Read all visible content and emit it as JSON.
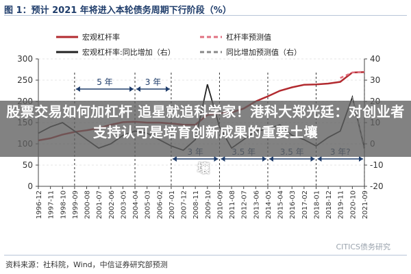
{
  "figure": {
    "title": "图 1：预计 2021 年将进入本轮债务周期下行阶段（%）",
    "source": "资料来源：社科院，Wind，中信证券研究部预测",
    "watermark": "CITICS债务研究"
  },
  "overlay": {
    "headline": "股票交易如何加杠杆 追星就追科学家！港科大郑光廷：对创业者支持认可是培育创新成果的重要土壤",
    "tail": "壤"
  },
  "colors": {
    "leverage": "#b22a2f",
    "leverage_forecast": "#e07080",
    "yoy": "#222222",
    "yoy_forecast": "#888888",
    "annotation": "#1f3d6b"
  },
  "chart_data": {
    "type": "line",
    "x": [
      "1996-12",
      "1997-11",
      "1998-10",
      "1999-09",
      "2000-08",
      "2001-07",
      "2002-06",
      "2003-05",
      "2004-04",
      "2005-03",
      "2006-02",
      "2007-01",
      "2007-12",
      "2008-11",
      "2009-10",
      "2010-09",
      "2011-08",
      "2012-07",
      "2013-06",
      "2014-05",
      "2015-04",
      "2016-03",
      "2017-02",
      "2018-01",
      "2018-12",
      "2019-11",
      "2020-10",
      "2021-09"
    ],
    "ylim_left": [
      0,
      300
    ],
    "ylim_right": [
      -20,
      40
    ],
    "yticks_left": [
      0,
      50,
      100,
      150,
      200,
      250,
      300
    ],
    "yticks_right": [
      -20,
      -10,
      0,
      10,
      20,
      30,
      40
    ],
    "series": [
      {
        "name": "宏观杠杆率",
        "axis": "left",
        "style": "solid",
        "values": [
          108,
          113,
          122,
          128,
          132,
          137,
          145,
          151,
          152,
          150,
          150,
          148,
          145,
          145,
          168,
          172,
          174,
          183,
          200,
          212,
          225,
          233,
          239,
          240,
          242,
          246,
          268,
          269
        ]
      },
      {
        "name": "杠杆率预测值",
        "axis": "left",
        "style": "dashed",
        "values": [
          null,
          null,
          null,
          null,
          null,
          null,
          null,
          null,
          null,
          null,
          null,
          null,
          null,
          null,
          null,
          null,
          null,
          null,
          null,
          null,
          null,
          null,
          null,
          null,
          null,
          255,
          268,
          270
        ]
      },
      {
        "name": "宏观杠杆率:同比增加（右）",
        "axis": "right",
        "style": "solid",
        "values": [
          5,
          8,
          10,
          6,
          2,
          -2,
          0,
          4,
          6,
          5,
          2,
          -1,
          -3,
          2,
          28,
          8,
          -2,
          2,
          6,
          7,
          9,
          4,
          2,
          -1,
          3,
          6,
          22,
          -2
        ]
      },
      {
        "name": "同比增加预测值（右）",
        "axis": "right",
        "style": "dashed",
        "values": [
          null,
          null,
          null,
          null,
          null,
          null,
          null,
          null,
          null,
          null,
          null,
          null,
          null,
          null,
          null,
          null,
          null,
          null,
          null,
          null,
          null,
          null,
          null,
          null,
          null,
          null,
          22,
          -3
        ]
      }
    ],
    "annotations": [
      {
        "text": "5 年",
        "level": "upper"
      },
      {
        "text": "3 年",
        "level": "upper"
      },
      {
        "text": "3 年",
        "level": "lower"
      },
      {
        "text": "3.5 年",
        "level": "lower"
      },
      {
        "text": "3.5 年",
        "level": "lower"
      },
      {
        "text": "3 年?",
        "level": "lower"
      }
    ]
  }
}
